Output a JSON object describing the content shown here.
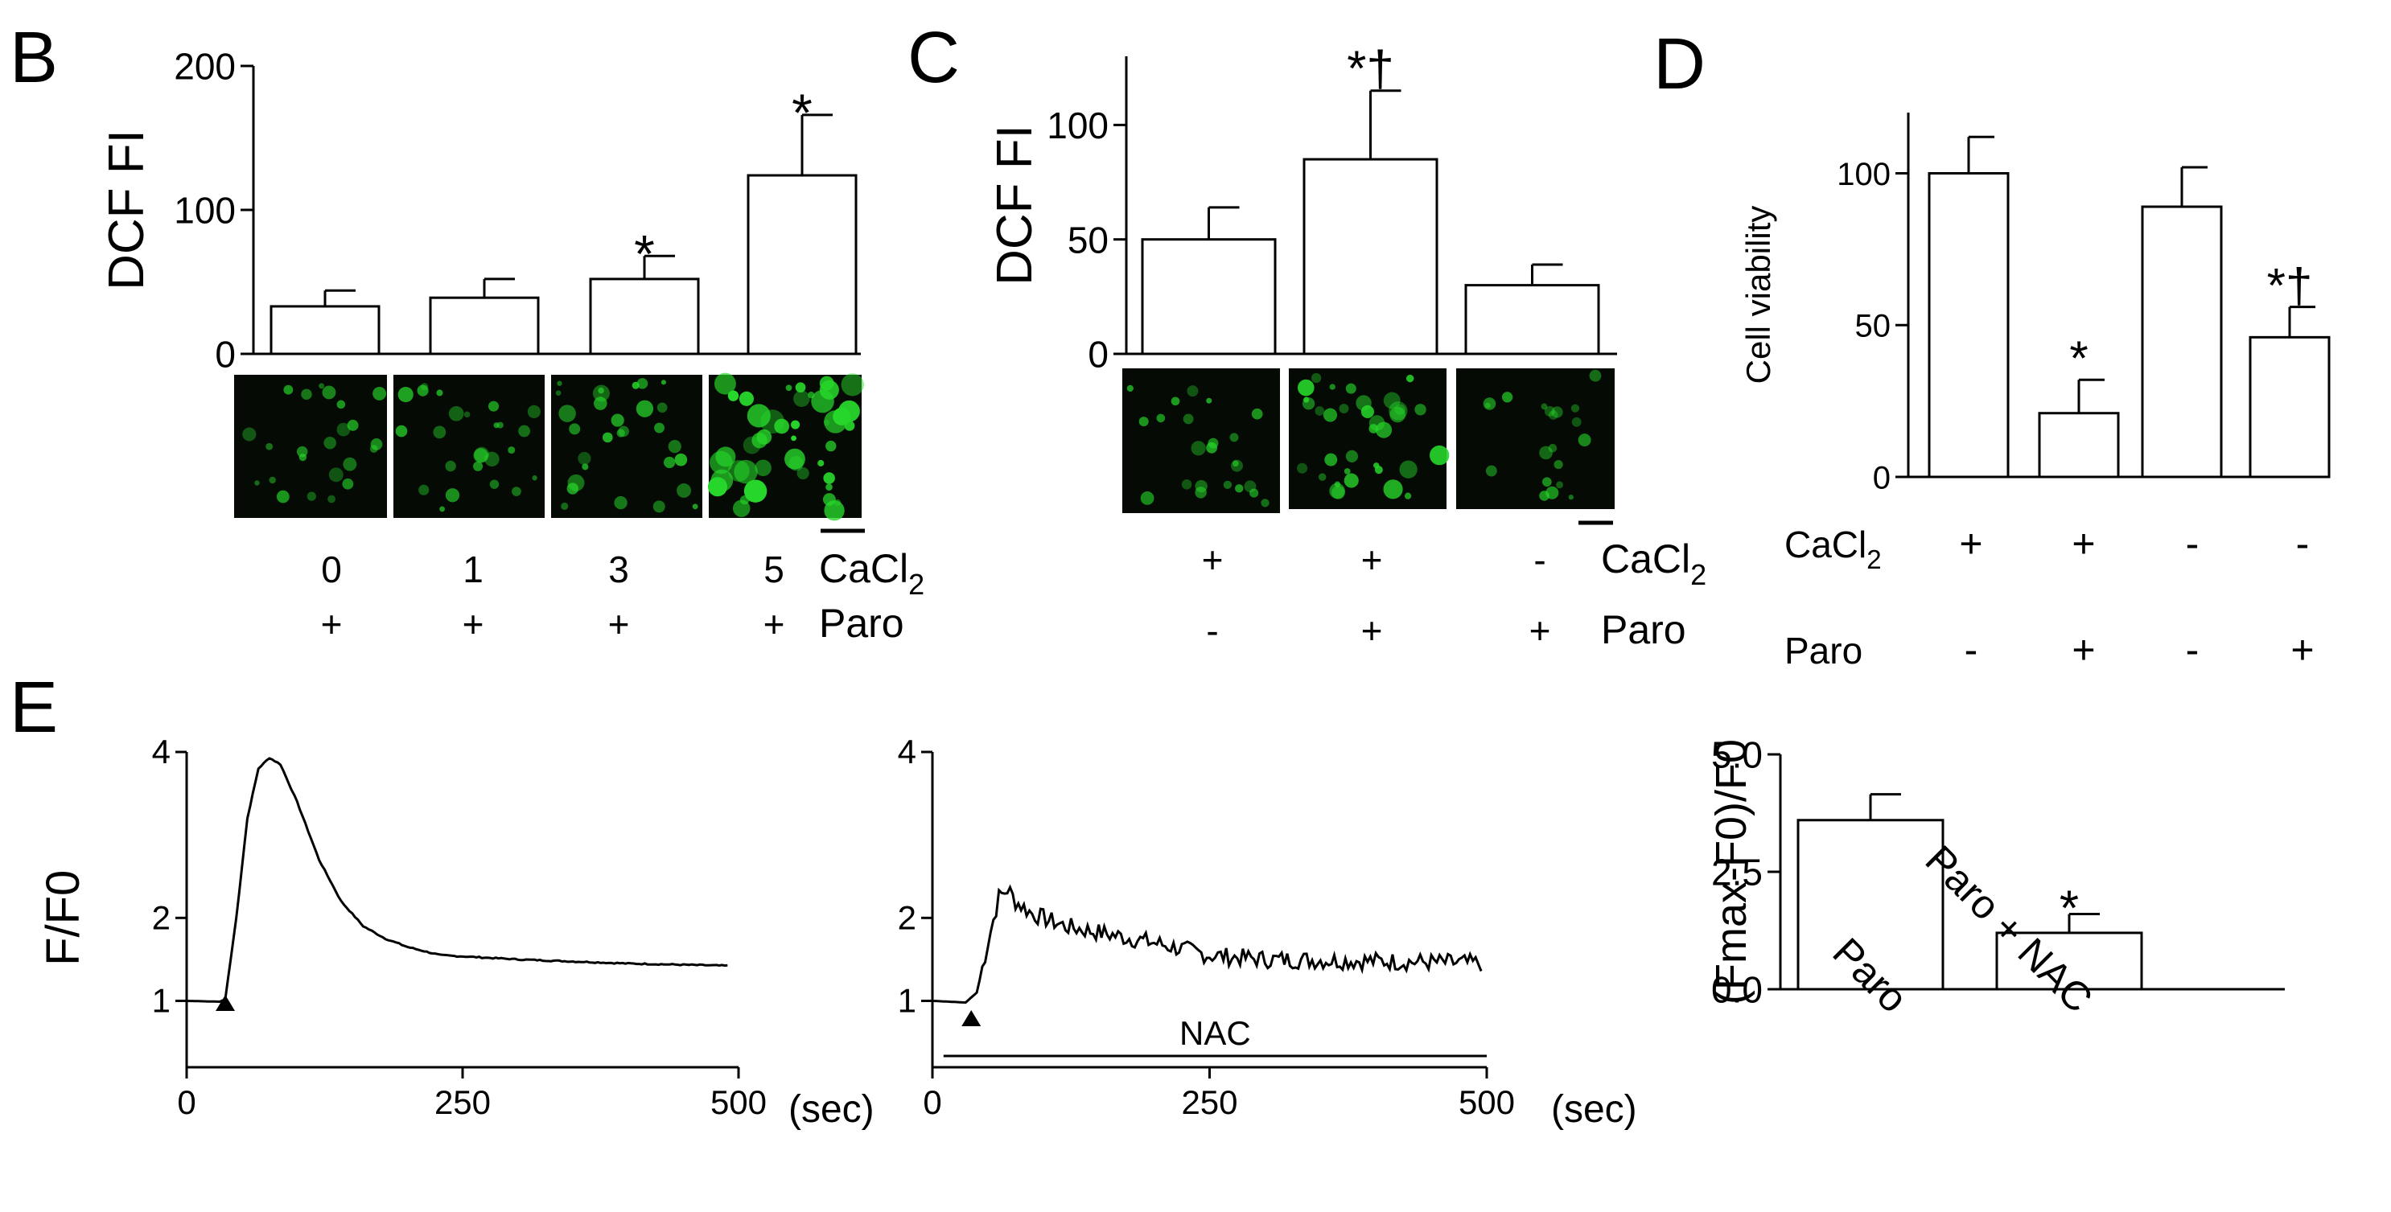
{
  "colors": {
    "ink": "#000000",
    "bar_fill": "#ffffff",
    "micrograph_bg": "#050a05",
    "cell_green": "#27d62a"
  },
  "icons": {
    "arrowhead": "black-up-triangle-icon"
  },
  "panels": {
    "B": {
      "letter": "B"
    },
    "C": {
      "letter": "C"
    },
    "D": {
      "letter": "D"
    },
    "E": {
      "letter": "E"
    }
  },
  "chart_data": [
    {
      "id": "B",
      "type": "bar",
      "ylabel": "DCF FI",
      "ylim": [
        0,
        200
      ],
      "yticks": [
        "0",
        "100",
        "200"
      ],
      "categories": [
        "0",
        "1",
        "3",
        "5"
      ],
      "values": [
        33,
        39,
        52,
        124
      ],
      "errors": [
        11,
        13,
        16,
        42
      ],
      "annotations": [
        "",
        "",
        "*",
        "*"
      ],
      "rows": [
        {
          "label": "CaCl",
          "sub": "2",
          "values": [
            "0",
            "1",
            "3",
            "5"
          ]
        },
        {
          "label": "Paro",
          "sub": "",
          "values": [
            "+",
            "+",
            "+",
            "+"
          ]
        }
      ],
      "micrographs": 4
    },
    {
      "id": "C",
      "type": "bar",
      "ylabel": "DCF FI",
      "ylim": [
        0,
        130
      ],
      "yticks": [
        "0",
        "50",
        "100"
      ],
      "values": [
        50,
        85,
        30
      ],
      "errors": [
        14,
        30,
        9
      ],
      "annotations": [
        "",
        "*†",
        ""
      ],
      "rows": [
        {
          "label": "CaCl",
          "sub": "2",
          "values": [
            "+",
            "+",
            "-"
          ]
        },
        {
          "label": "Paro",
          "sub": "",
          "values": [
            "-",
            "+",
            "+"
          ]
        }
      ],
      "micrographs": 3
    },
    {
      "id": "D",
      "type": "bar",
      "ylabel": "Cell viability",
      "ylim": [
        0,
        120
      ],
      "yticks": [
        "0",
        "50",
        "100"
      ],
      "values": [
        100,
        21,
        89,
        46
      ],
      "errors": [
        12,
        11,
        13,
        10
      ],
      "annotations": [
        "",
        "*",
        "",
        "*†"
      ],
      "rows": [
        {
          "label": "CaCl",
          "sub": "2",
          "values": [
            "+",
            "+",
            "-",
            "-"
          ]
        },
        {
          "label": "Paro",
          "sub": "",
          "values": [
            "-",
            "+",
            "-",
            "+"
          ]
        }
      ]
    },
    {
      "id": "E1",
      "type": "line",
      "ylabel": "F/F0",
      "xlabel": "(sec)",
      "xlim": [
        0,
        500
      ],
      "ylim": [
        0.2,
        4
      ],
      "xticks": [
        "0",
        "250",
        "500"
      ],
      "yticks": [
        "1",
        "2",
        "4"
      ],
      "stimulus_x": 35,
      "keypoints": [
        [
          0,
          1
        ],
        [
          30,
          0.99
        ],
        [
          35,
          1.02
        ],
        [
          45,
          2.0
        ],
        [
          55,
          3.2
        ],
        [
          65,
          3.8
        ],
        [
          75,
          3.93
        ],
        [
          85,
          3.85
        ],
        [
          100,
          3.4
        ],
        [
          120,
          2.7
        ],
        [
          140,
          2.2
        ],
        [
          160,
          1.9
        ],
        [
          180,
          1.75
        ],
        [
          200,
          1.65
        ],
        [
          230,
          1.55
        ],
        [
          300,
          1.5
        ],
        [
          400,
          1.45
        ],
        [
          500,
          1.42
        ]
      ]
    },
    {
      "id": "E2",
      "type": "line",
      "xlabel": "(sec)",
      "xlim": [
        0,
        500
      ],
      "ylim": [
        0.2,
        4
      ],
      "xticks": [
        "0",
        "250",
        "500"
      ],
      "yticks": [
        "1",
        "2",
        "4"
      ],
      "stimulus_x": 35,
      "bar_label": "NAC",
      "bar_range": [
        10,
        500
      ],
      "keypoints": [
        [
          0,
          1
        ],
        [
          30,
          0.98
        ],
        [
          40,
          1.1
        ],
        [
          50,
          1.7
        ],
        [
          60,
          2.25
        ],
        [
          68,
          2.35
        ],
        [
          75,
          2.2
        ],
        [
          90,
          2.05
        ],
        [
          120,
          1.9
        ],
        [
          160,
          1.8
        ],
        [
          200,
          1.7
        ],
        [
          250,
          1.55
        ],
        [
          300,
          1.5
        ],
        [
          400,
          1.48
        ],
        [
          500,
          1.45
        ]
      ]
    },
    {
      "id": "E3",
      "type": "bar",
      "ylabel": "(Fmax-F0)/F0",
      "ylim": [
        0,
        5
      ],
      "yticks": [
        "0.0",
        "2.5",
        "5.0"
      ],
      "categories": [
        "Paro",
        "Paro + NAC"
      ],
      "values": [
        3.6,
        1.2
      ],
      "errors": [
        0.55,
        0.4
      ],
      "annotations": [
        "",
        "*"
      ]
    }
  ]
}
